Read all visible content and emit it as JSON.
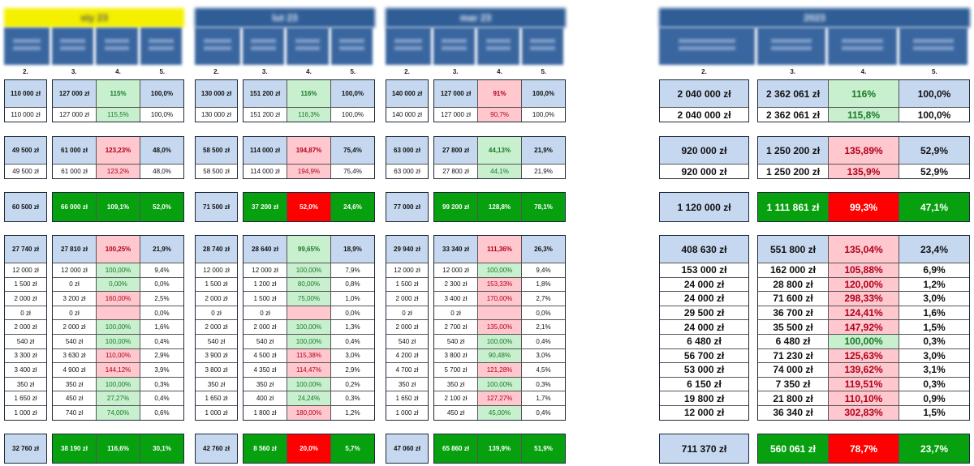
{
  "column_numbers": [
    "2.",
    "3.",
    "4.",
    "5."
  ],
  "colors": {
    "header_blue": "#2f5d96",
    "plan_blue": "#c6d8ef",
    "good_green": "#c8efce",
    "bad_pink": "#ffc7ce",
    "total_green": "#07a00f",
    "total_red": "#ff0000",
    "jan_title_yellow": "#f5f000"
  },
  "blocks": [
    {
      "title": "sty 23",
      "groups": [
        {
          "rows": [
            {
              "kind": "h",
              "s": "g",
              "cells": [
                "110 000 zł",
                "127 000 zł",
                "115%",
                "100,0%"
              ]
            },
            {
              "kind": "d",
              "s": "g",
              "cells": [
                "110 000 zł",
                "127 000 zł",
                "115,5%",
                "100,0%"
              ]
            }
          ]
        },
        {
          "rows": [
            {
              "kind": "h",
              "s": "r",
              "cells": [
                "49 500 zł",
                "61 000 zł",
                "123,23%",
                "48,0%"
              ]
            },
            {
              "kind": "d",
              "s": "r",
              "cells": [
                "49 500 zł",
                "61 000 zł",
                "123,2%",
                "48,0%"
              ]
            }
          ]
        },
        {
          "rows": [
            {
              "kind": "t",
              "s": "green",
              "cells": [
                "60 500 zł",
                "66 000 zł",
                "109,1%",
                "52,0%"
              ]
            }
          ]
        },
        {
          "rows": [
            {
              "kind": "h",
              "s": "r",
              "cells": [
                "27 740 zł",
                "27 810 zł",
                "100,25%",
                "21,9%"
              ]
            },
            {
              "kind": "d",
              "s": "g",
              "cells": [
                "12 000 zł",
                "12 000 zł",
                "100,00%",
                "9,4%"
              ]
            },
            {
              "kind": "d",
              "s": "g",
              "cells": [
                "1 500 zł",
                "0 zł",
                "0,00%",
                "0,0%"
              ]
            },
            {
              "kind": "d",
              "s": "r",
              "cells": [
                "2 000 zł",
                "3 200 zł",
                "160,00%",
                "2,5%"
              ]
            },
            {
              "kind": "d",
              "s": "r",
              "cells": [
                "0 zł",
                "0 zł",
                "",
                "0,0%"
              ]
            },
            {
              "kind": "d",
              "s": "g",
              "cells": [
                "2 000 zł",
                "2 000 zł",
                "100,00%",
                "1,6%"
              ]
            },
            {
              "kind": "d",
              "s": "g",
              "cells": [
                "540 zł",
                "540 zł",
                "100,00%",
                "0,4%"
              ]
            },
            {
              "kind": "d",
              "s": "r",
              "cells": [
                "3 300 zł",
                "3 630 zł",
                "110,00%",
                "2,9%"
              ]
            },
            {
              "kind": "d",
              "s": "r",
              "cells": [
                "3 400 zł",
                "4 900 zł",
                "144,12%",
                "3,9%"
              ]
            },
            {
              "kind": "d",
              "s": "g",
              "cells": [
                "350 zł",
                "350 zł",
                "100,00%",
                "0,3%"
              ]
            },
            {
              "kind": "d",
              "s": "g",
              "cells": [
                "1 650 zł",
                "450 zł",
                "27,27%",
                "0,4%"
              ]
            },
            {
              "kind": "d",
              "s": "g",
              "cells": [
                "1 000 zł",
                "740 zł",
                "74,00%",
                "0,6%"
              ]
            }
          ]
        },
        {
          "rows": [
            {
              "kind": "t",
              "s": "green",
              "cells": [
                "32 760 zł",
                "38 190 zł",
                "116,6%",
                "30,1%"
              ]
            }
          ]
        }
      ]
    },
    {
      "title": "lut 23",
      "groups": [
        {
          "rows": [
            {
              "kind": "h",
              "s": "g",
              "cells": [
                "130 000 zł",
                "151 200 zł",
                "116%",
                "100,0%"
              ]
            },
            {
              "kind": "d",
              "s": "g",
              "cells": [
                "130 000 zł",
                "151 200 zł",
                "116,3%",
                "100,0%"
              ]
            }
          ]
        },
        {
          "rows": [
            {
              "kind": "h",
              "s": "r",
              "cells": [
                "58 500 zł",
                "114 000 zł",
                "194,87%",
                "75,4%"
              ]
            },
            {
              "kind": "d",
              "s": "r",
              "cells": [
                "58 500 zł",
                "114 000 zł",
                "194,9%",
                "75,4%"
              ]
            }
          ]
        },
        {
          "rows": [
            {
              "kind": "t",
              "s": "red",
              "cells": [
                "71 500 zł",
                "37 200 zł",
                "52,0%",
                "24,6%"
              ]
            }
          ]
        },
        {
          "rows": [
            {
              "kind": "h",
              "s": "g",
              "cells": [
                "28 740 zł",
                "28 640 zł",
                "99,65%",
                "18,9%"
              ]
            },
            {
              "kind": "d",
              "s": "g",
              "cells": [
                "12 000 zł",
                "12 000 zł",
                "100,00%",
                "7,9%"
              ]
            },
            {
              "kind": "d",
              "s": "g",
              "cells": [
                "1 500 zł",
                "1 200 zł",
                "80,00%",
                "0,8%"
              ]
            },
            {
              "kind": "d",
              "s": "g",
              "cells": [
                "2 000 zł",
                "1 500 zł",
                "75,00%",
                "1,0%"
              ]
            },
            {
              "kind": "d",
              "s": "r",
              "cells": [
                "0 zł",
                "0 zł",
                "",
                "0,0%"
              ]
            },
            {
              "kind": "d",
              "s": "g",
              "cells": [
                "2 000 zł",
                "2 000 zł",
                "100,00%",
                "1,3%"
              ]
            },
            {
              "kind": "d",
              "s": "g",
              "cells": [
                "540 zł",
                "540 zł",
                "100,00%",
                "0,4%"
              ]
            },
            {
              "kind": "d",
              "s": "r",
              "cells": [
                "3 900 zł",
                "4 500 zł",
                "115,38%",
                "3,0%"
              ]
            },
            {
              "kind": "d",
              "s": "r",
              "cells": [
                "3 800 zł",
                "4 350 zł",
                "114,47%",
                "2,9%"
              ]
            },
            {
              "kind": "d",
              "s": "g",
              "cells": [
                "350 zł",
                "350 zł",
                "100,00%",
                "0,2%"
              ]
            },
            {
              "kind": "d",
              "s": "g",
              "cells": [
                "1 650 zł",
                "400 zł",
                "24,24%",
                "0,3%"
              ]
            },
            {
              "kind": "d",
              "s": "r",
              "cells": [
                "1 000 zł",
                "1 800 zł",
                "180,00%",
                "1,2%"
              ]
            }
          ]
        },
        {
          "rows": [
            {
              "kind": "t",
              "s": "red",
              "cells": [
                "42 760 zł",
                "8 560 zł",
                "20,0%",
                "5,7%"
              ]
            }
          ]
        }
      ]
    },
    {
      "title": "mar 23",
      "groups": [
        {
          "rows": [
            {
              "kind": "h",
              "s": "r",
              "cells": [
                "140 000 zł",
                "127 000 zł",
                "91%",
                "100,0%"
              ]
            },
            {
              "kind": "d",
              "s": "r",
              "cells": [
                "140 000 zł",
                "127 000 zł",
                "90,7%",
                "100,0%"
              ]
            }
          ]
        },
        {
          "rows": [
            {
              "kind": "h",
              "s": "g",
              "cells": [
                "63 000 zł",
                "27 800 zł",
                "44,13%",
                "21,9%"
              ]
            },
            {
              "kind": "d",
              "s": "g",
              "cells": [
                "63 000 zł",
                "27 800 zł",
                "44,1%",
                "21,9%"
              ]
            }
          ]
        },
        {
          "rows": [
            {
              "kind": "t",
              "s": "green",
              "cells": [
                "77 000 zł",
                "99 200 zł",
                "128,8%",
                "78,1%"
              ]
            }
          ]
        },
        {
          "rows": [
            {
              "kind": "h",
              "s": "r",
              "cells": [
                "29 940 zł",
                "33 340 zł",
                "111,36%",
                "26,3%"
              ]
            },
            {
              "kind": "d",
              "s": "g",
              "cells": [
                "12 000 zł",
                "12 000 zł",
                "100,00%",
                "9,4%"
              ]
            },
            {
              "kind": "d",
              "s": "r",
              "cells": [
                "1 500 zł",
                "2 300 zł",
                "153,33%",
                "1,8%"
              ]
            },
            {
              "kind": "d",
              "s": "r",
              "cells": [
                "2 000 zł",
                "3 400 zł",
                "170,00%",
                "2,7%"
              ]
            },
            {
              "kind": "d",
              "s": "r",
              "cells": [
                "0 zł",
                "0 zł",
                "",
                "0,0%"
              ]
            },
            {
              "kind": "d",
              "s": "r",
              "cells": [
                "2 000 zł",
                "2 700 zł",
                "135,00%",
                "2,1%"
              ]
            },
            {
              "kind": "d",
              "s": "g",
              "cells": [
                "540 zł",
                "540 zł",
                "100,00%",
                "0,4%"
              ]
            },
            {
              "kind": "d",
              "s": "g",
              "cells": [
                "4 200 zł",
                "3 800 zł",
                "90,48%",
                "3,0%"
              ]
            },
            {
              "kind": "d",
              "s": "r",
              "cells": [
                "4 700 zł",
                "5 700 zł",
                "121,28%",
                "4,5%"
              ]
            },
            {
              "kind": "d",
              "s": "g",
              "cells": [
                "350 zł",
                "350 zł",
                "100,00%",
                "0,3%"
              ]
            },
            {
              "kind": "d",
              "s": "r",
              "cells": [
                "1 650 zł",
                "2 100 zł",
                "127,27%",
                "1,7%"
              ]
            },
            {
              "kind": "d",
              "s": "g",
              "cells": [
                "1 000 zł",
                "450 zł",
                "45,00%",
                "0,4%"
              ]
            }
          ]
        },
        {
          "rows": [
            {
              "kind": "t",
              "s": "green",
              "cells": [
                "47 060 zł",
                "65 860 zł",
                "139,9%",
                "51,9%"
              ]
            }
          ]
        }
      ]
    },
    {
      "title": "2023",
      "groups": [
        {
          "rows": [
            {
              "kind": "h",
              "s": "g",
              "cells": [
                "2 040 000 zł",
                "2 362 061 zł",
                "116%",
                "100,0%"
              ]
            },
            {
              "kind": "d",
              "s": "g",
              "cells": [
                "2 040 000 zł",
                "2 362 061 zł",
                "115,8%",
                "100,0%"
              ]
            }
          ]
        },
        {
          "rows": [
            {
              "kind": "h",
              "s": "r",
              "cells": [
                "920 000 zł",
                "1 250 200 zł",
                "135,89%",
                "52,9%"
              ]
            },
            {
              "kind": "d",
              "s": "r",
              "cells": [
                "920 000 zł",
                "1 250 200 zł",
                "135,9%",
                "52,9%"
              ]
            }
          ]
        },
        {
          "rows": [
            {
              "kind": "t",
              "s": "red",
              "cells": [
                "1 120 000 zł",
                "1 111 861 zł",
                "99,3%",
                "47,1%"
              ]
            }
          ]
        },
        {
          "rows": [
            {
              "kind": "h",
              "s": "r",
              "cells": [
                "408 630 zł",
                "551 800 zł",
                "135,04%",
                "23,4%"
              ]
            },
            {
              "kind": "d",
              "s": "r",
              "cells": [
                "153 000 zł",
                "162 000 zł",
                "105,88%",
                "6,9%"
              ]
            },
            {
              "kind": "d",
              "s": "r",
              "cells": [
                "24 000 zł",
                "28 800 zł",
                "120,00%",
                "1,2%"
              ]
            },
            {
              "kind": "d",
              "s": "r",
              "cells": [
                "24 000 zł",
                "71 600 zł",
                "298,33%",
                "3,0%"
              ]
            },
            {
              "kind": "d",
              "s": "r",
              "cells": [
                "29 500 zł",
                "36 700 zł",
                "124,41%",
                "1,6%"
              ]
            },
            {
              "kind": "d",
              "s": "r",
              "cells": [
                "24 000 zł",
                "35 500 zł",
                "147,92%",
                "1,5%"
              ]
            },
            {
              "kind": "d",
              "s": "g",
              "cells": [
                "6 480 zł",
                "6 480 zł",
                "100,00%",
                "0,3%"
              ]
            },
            {
              "kind": "d",
              "s": "r",
              "cells": [
                "56 700 zł",
                "71 230 zł",
                "125,63%",
                "3,0%"
              ]
            },
            {
              "kind": "d",
              "s": "r",
              "cells": [
                "53 000 zł",
                "74 000 zł",
                "139,62%",
                "3,1%"
              ]
            },
            {
              "kind": "d",
              "s": "r",
              "cells": [
                "6 150 zł",
                "7 350 zł",
                "119,51%",
                "0,3%"
              ]
            },
            {
              "kind": "d",
              "s": "r",
              "cells": [
                "19 800 zł",
                "21 800 zł",
                "110,10%",
                "0,9%"
              ]
            },
            {
              "kind": "d",
              "s": "r",
              "cells": [
                "12 000 zł",
                "36 340 zł",
                "302,83%",
                "1,5%"
              ]
            }
          ]
        },
        {
          "rows": [
            {
              "kind": "t",
              "s": "red",
              "cells": [
                "711 370 zł",
                "560 061 zł",
                "78,7%",
                "23,7%"
              ]
            }
          ]
        }
      ]
    }
  ]
}
